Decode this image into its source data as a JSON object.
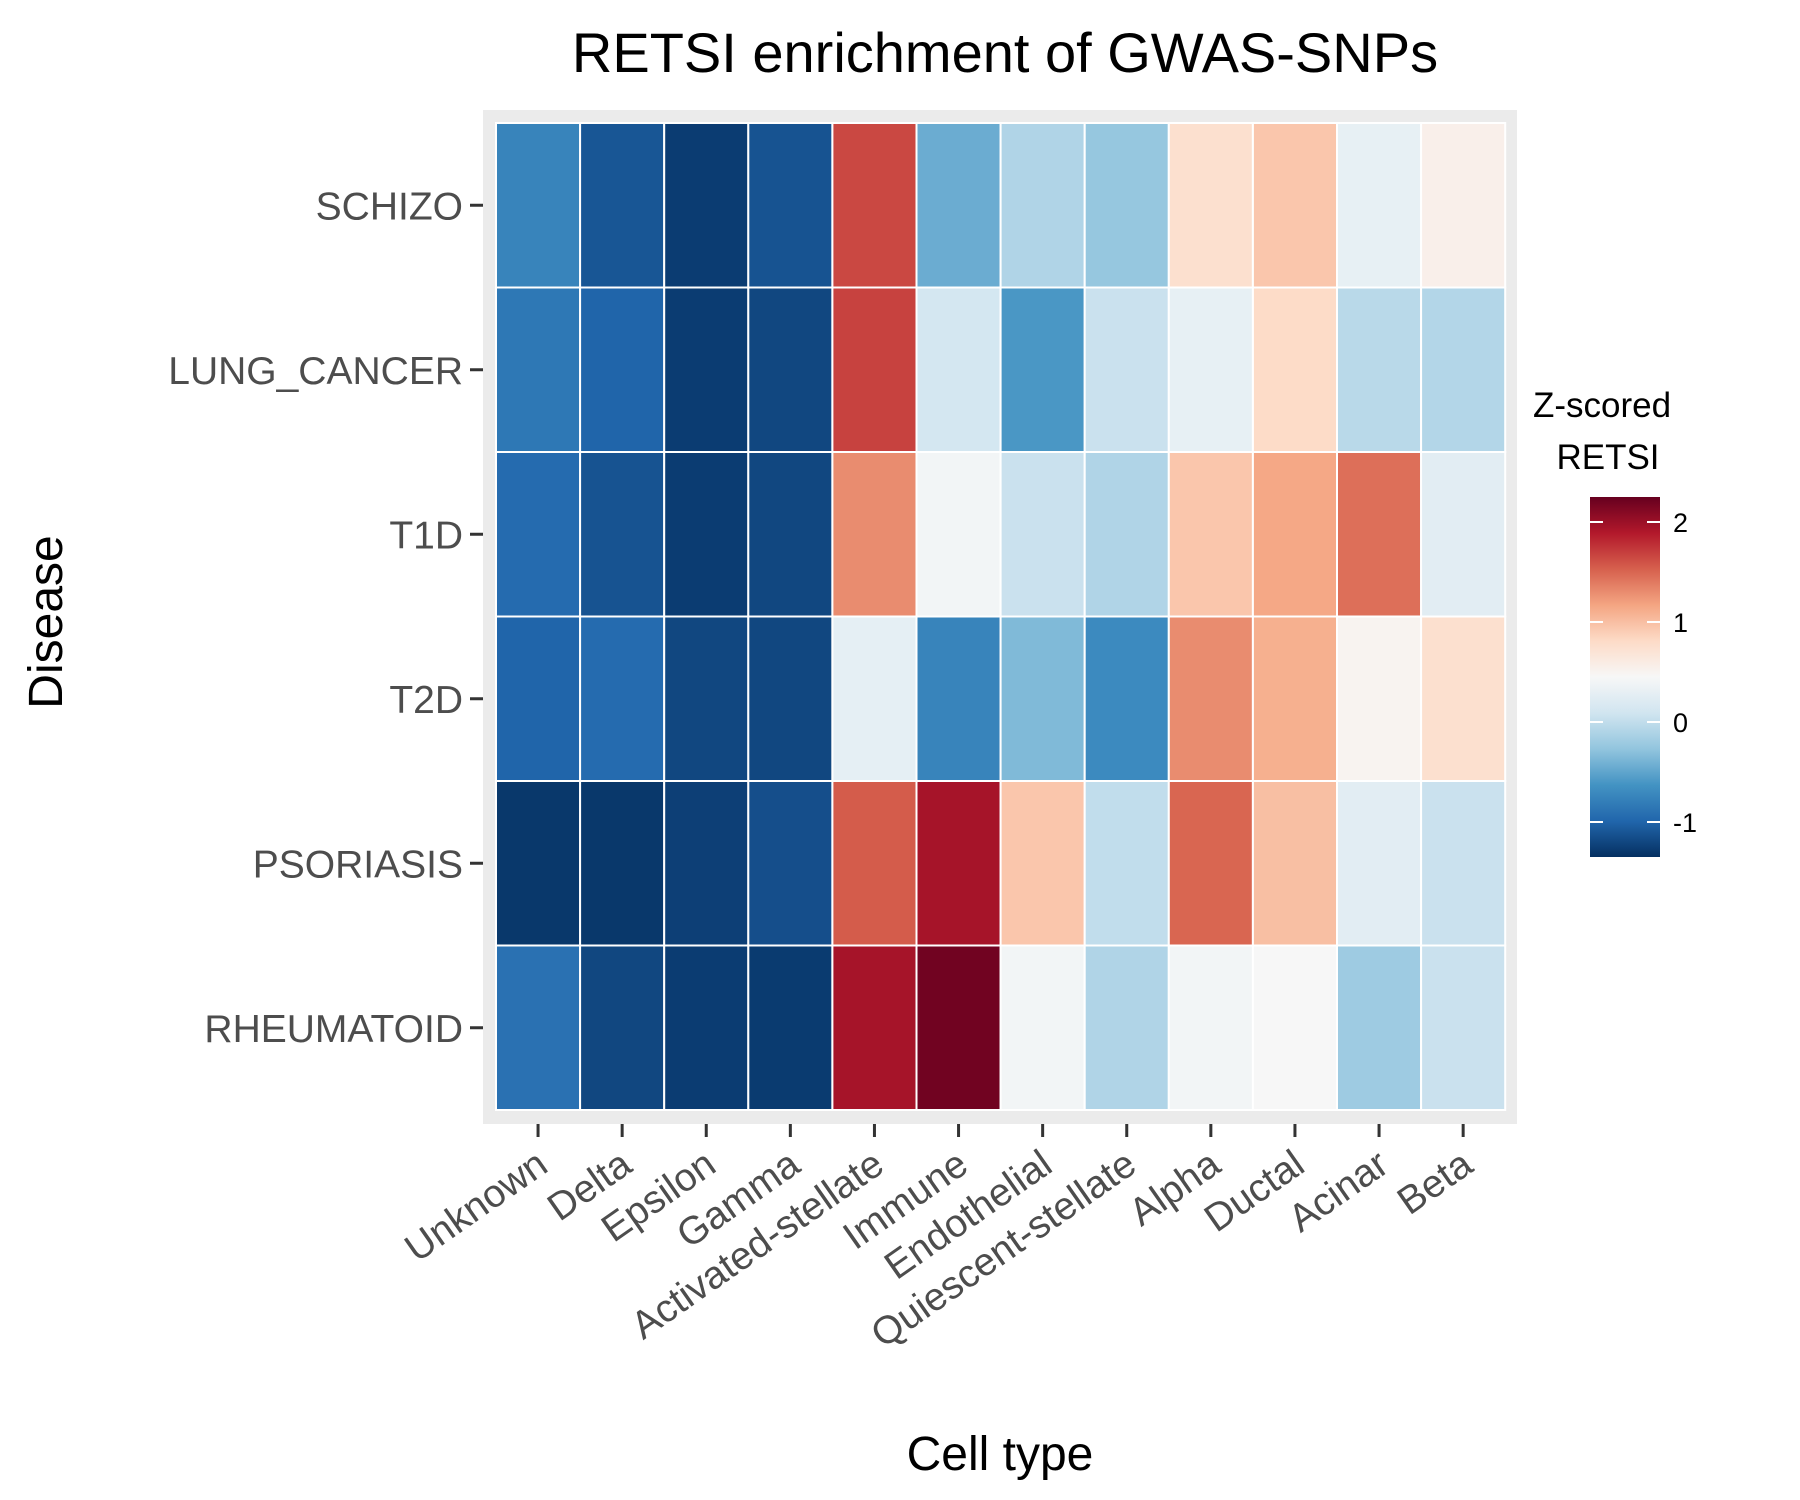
{
  "chart_data": {
    "type": "heatmap",
    "title": "RETSI enrichment of GWAS-SNPs",
    "xlabel": "Cell type",
    "ylabel": "Disease",
    "x_categories": [
      "Unknown",
      "Delta",
      "Epsilon",
      "Gamma",
      "Activated-stellate",
      "Immune",
      "Endothelial",
      "Quiescent-stellate",
      "Alpha",
      "Ductal",
      "Acinar",
      "Beta"
    ],
    "y_categories": [
      "SCHIZO",
      "LUNG_CANCER",
      "T1D",
      "T2D",
      "PSORIASIS",
      "RHEUMATOID"
    ],
    "values": [
      [
        -0.75,
        -1.1,
        -1.27,
        -1.12,
        1.65,
        -0.45,
        -0.1,
        -0.25,
        0.75,
        0.95,
        0.3,
        0.55
      ],
      [
        -0.85,
        -1.0,
        -1.27,
        -1.2,
        1.68,
        0.12,
        -0.6,
        0.05,
        0.3,
        0.8,
        -0.05,
        -0.08
      ],
      [
        -0.95,
        -1.12,
        -1.27,
        -1.2,
        1.3,
        0.4,
        0.05,
        -0.1,
        0.95,
        1.15,
        1.45,
        0.25
      ],
      [
        -1.0,
        -0.95,
        -1.2,
        -1.2,
        0.28,
        -0.75,
        -0.35,
        -0.7,
        1.3,
        1.1,
        0.5,
        0.75
      ],
      [
        -1.3,
        -1.3,
        -1.25,
        -1.15,
        1.55,
        1.95,
        0.95,
        0.0,
        1.5,
        1.0,
        0.25,
        0.05
      ],
      [
        -0.9,
        -1.2,
        -1.27,
        -1.28,
        1.95,
        2.2,
        0.4,
        -0.1,
        0.4,
        0.45,
        -0.2,
        0.05
      ]
    ],
    "grid": false,
    "colorscale": [
      "#053061",
      "#2166ac",
      "#4393c3",
      "#92c5de",
      "#d1e5f0",
      "#f7f7f7",
      "#fddbc7",
      "#f4a582",
      "#d6604d",
      "#b2182b",
      "#67001f"
    ],
    "color_range": [
      -1.35,
      2.25
    ],
    "legend": {
      "title_lines": [
        "Z-scored",
        "RETSI"
      ],
      "ticks": [
        -1,
        0,
        1,
        2
      ],
      "placement": "right"
    },
    "panel_background": "#ebebeb",
    "cell_border": "#ffffff"
  }
}
